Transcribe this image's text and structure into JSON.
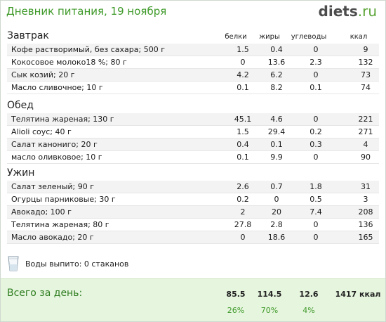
{
  "header": {
    "title": "Дневник питания, 19 ноября",
    "logo_main": "diets",
    "logo_suffix": ".ru"
  },
  "columns": {
    "protein": "белки",
    "fat": "жиры",
    "carbs": "углеводы",
    "kcal": "ккал"
  },
  "meals": [
    {
      "name": "Завтрак",
      "items": [
        {
          "name": "Кофе растворимый, без сахара; 500 г",
          "protein": "1.5",
          "fat": "0.4",
          "carbs": "0",
          "kcal": "9"
        },
        {
          "name": "Кокосовое молоко18 %; 80 г",
          "protein": "0",
          "fat": "13.6",
          "carbs": "2.3",
          "kcal": "132"
        },
        {
          "name": "Сык козий; 20 г",
          "protein": "4.2",
          "fat": "6.2",
          "carbs": "0",
          "kcal": "73"
        },
        {
          "name": "Масло сливочное; 10 г",
          "protein": "0.1",
          "fat": "8.2",
          "carbs": "0.1",
          "kcal": "74"
        }
      ]
    },
    {
      "name": "Обед",
      "items": [
        {
          "name": "Телятина жареная; 130 г",
          "protein": "45.1",
          "fat": "4.6",
          "carbs": "0",
          "kcal": "221"
        },
        {
          "name": "Alioli соус; 40 г",
          "protein": "1.5",
          "fat": "29.4",
          "carbs": "0.2",
          "kcal": "271"
        },
        {
          "name": "Салат канониго; 20 г",
          "protein": "0.4",
          "fat": "0.1",
          "carbs": "0.3",
          "kcal": "4"
        },
        {
          "name": "масло оливковое; 10 г",
          "protein": "0.1",
          "fat": "9.9",
          "carbs": "0",
          "kcal": "90"
        }
      ]
    },
    {
      "name": "Ужин",
      "items": [
        {
          "name": "Салат зеленый; 90 г",
          "protein": "2.6",
          "fat": "0.7",
          "carbs": "1.8",
          "kcal": "31"
        },
        {
          "name": "Огурцы парниковые; 30 г",
          "protein": "0.2",
          "fat": "0",
          "carbs": "0.5",
          "kcal": "3"
        },
        {
          "name": "Авокадо; 100 г",
          "protein": "2",
          "fat": "20",
          "carbs": "7.4",
          "kcal": "208"
        },
        {
          "name": "Телятина жареная; 80 г",
          "protein": "27.8",
          "fat": "2.8",
          "carbs": "0",
          "kcal": "136"
        },
        {
          "name": "Масло авокадо; 20 г",
          "protein": "0",
          "fat": "18.6",
          "carbs": "0",
          "kcal": "165"
        }
      ]
    }
  ],
  "water": {
    "text": "Воды выпито: 0 стаканов",
    "icon": "water-glass-icon"
  },
  "totals": {
    "label": "Всего за день:",
    "protein": "85.5",
    "fat": "114.5",
    "carbs": "12.6",
    "kcal": "1417 ккал",
    "protein_pct": "26%",
    "fat_pct": "70%",
    "carbs_pct": "4%"
  },
  "colors": {
    "accent": "#3f9a2a",
    "total_bg": "#e6f5de"
  }
}
